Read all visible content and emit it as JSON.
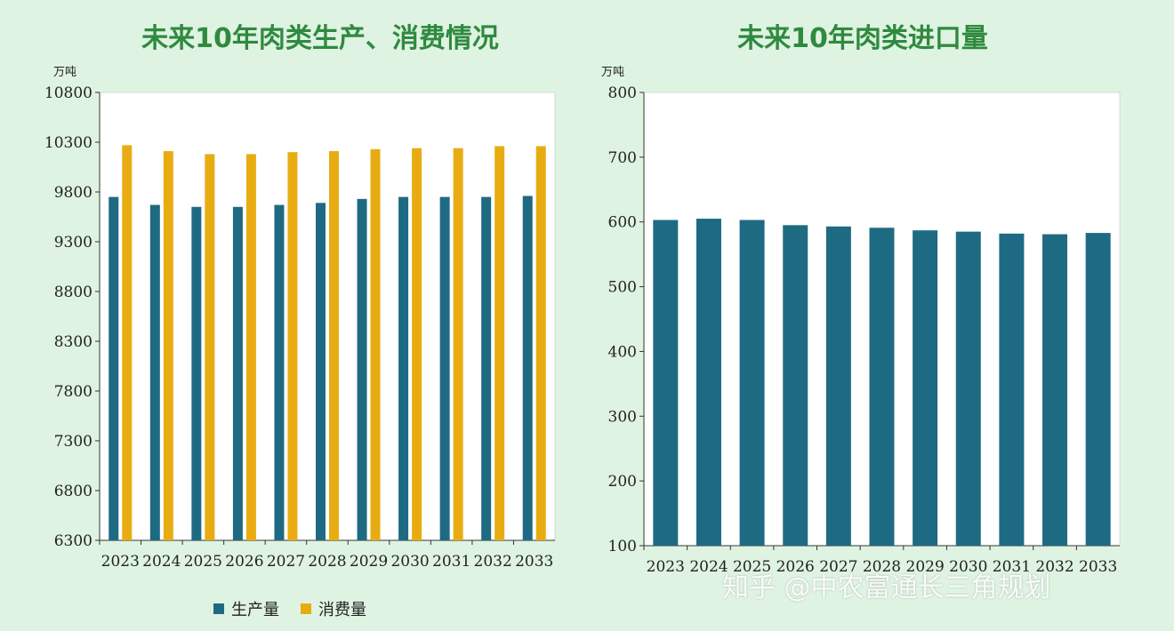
{
  "colors": {
    "production": "#1f6a83",
    "consumption": "#e8ac12",
    "title": "#2f8a3f"
  },
  "legend": {
    "production_label": "生产量",
    "consumption_label": "消费量"
  },
  "watermark": {
    "text": "知乎 @中农富通长三角规划"
  },
  "chart_data": [
    {
      "type": "bar",
      "title": "未来10年肉类生产、消费情况",
      "ylabel": "万吨",
      "xlabel": "",
      "ylim": [
        6300,
        10800
      ],
      "yticks": [
        6300,
        6800,
        7300,
        7800,
        8300,
        8800,
        9300,
        9800,
        10300,
        10800
      ],
      "grid": false,
      "legend_position": "bottom",
      "categories": [
        "2023",
        "2024",
        "2025",
        "2026",
        "2027",
        "2028",
        "2029",
        "2030",
        "2031",
        "2032",
        "2033"
      ],
      "series": [
        {
          "name": "生产量",
          "values": [
            9750,
            9670,
            9650,
            9650,
            9670,
            9690,
            9730,
            9750,
            9750,
            9750,
            9760
          ]
        },
        {
          "name": "消费量",
          "values": [
            10270,
            10210,
            10180,
            10180,
            10200,
            10210,
            10230,
            10240,
            10240,
            10260,
            10260
          ]
        }
      ]
    },
    {
      "type": "bar",
      "title": "未来10年肉类进口量",
      "ylabel": "万吨",
      "xlabel": "",
      "ylim": [
        100,
        800
      ],
      "yticks": [
        100,
        200,
        300,
        400,
        500,
        600,
        700,
        800
      ],
      "grid": false,
      "categories": [
        "2023",
        "2024",
        "2025",
        "2026",
        "2027",
        "2028",
        "2029",
        "2030",
        "2031",
        "2032",
        "2033"
      ],
      "values": [
        603,
        605,
        603,
        595,
        593,
        591,
        587,
        585,
        582,
        581,
        583
      ]
    }
  ]
}
